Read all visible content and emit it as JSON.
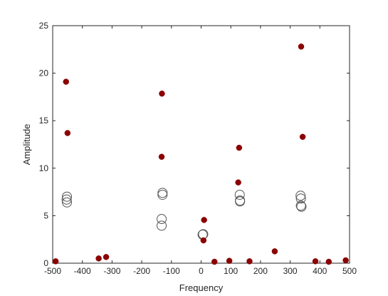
{
  "chart_data": {
    "type": "scatter",
    "title": "",
    "xlabel": "Frequency",
    "ylabel": "Amplitude",
    "xlim": [
      -500,
      500
    ],
    "ylim": [
      0,
      25
    ],
    "xticks": [
      -500,
      -400,
      -300,
      -200,
      -100,
      0,
      100,
      200,
      300,
      400,
      500
    ],
    "yticks": [
      0,
      5,
      10,
      15,
      20,
      25
    ],
    "grid": false,
    "legend": "none",
    "series": [
      {
        "marker": "filled-circle",
        "color": "#8b0000",
        "points": [
          [
            -490,
            0.2
          ],
          [
            -455,
            19.1
          ],
          [
            -450,
            13.7
          ],
          [
            -345,
            0.5
          ],
          [
            -320,
            0.65
          ],
          [
            -132,
            17.85
          ],
          [
            -133,
            11.2
          ],
          [
            10,
            4.55
          ],
          [
            8,
            2.4
          ],
          [
            45,
            0.15
          ],
          [
            95,
            0.25
          ],
          [
            128,
            12.15
          ],
          [
            125,
            8.5
          ],
          [
            163,
            0.2
          ],
          [
            248,
            1.25
          ],
          [
            337,
            22.8
          ],
          [
            342,
            13.3
          ],
          [
            385,
            0.2
          ],
          [
            430,
            0.15
          ],
          [
            487,
            0.3
          ]
        ]
      },
      {
        "marker": "open-circle",
        "color": "#555555",
        "points": [
          [
            -452,
            7.0
          ],
          [
            -453,
            6.7
          ],
          [
            -452,
            6.4
          ],
          [
            -130,
            7.4
          ],
          [
            -130,
            7.2
          ],
          [
            -133,
            4.65
          ],
          [
            -133,
            3.95
          ],
          [
            5,
            3.0
          ],
          [
            7,
            3.05
          ],
          [
            130,
            7.2
          ],
          [
            131,
            6.6
          ],
          [
            131,
            6.5
          ],
          [
            335,
            7.1
          ],
          [
            336,
            6.8
          ],
          [
            336,
            6.05
          ],
          [
            338,
            5.95
          ]
        ]
      }
    ]
  }
}
